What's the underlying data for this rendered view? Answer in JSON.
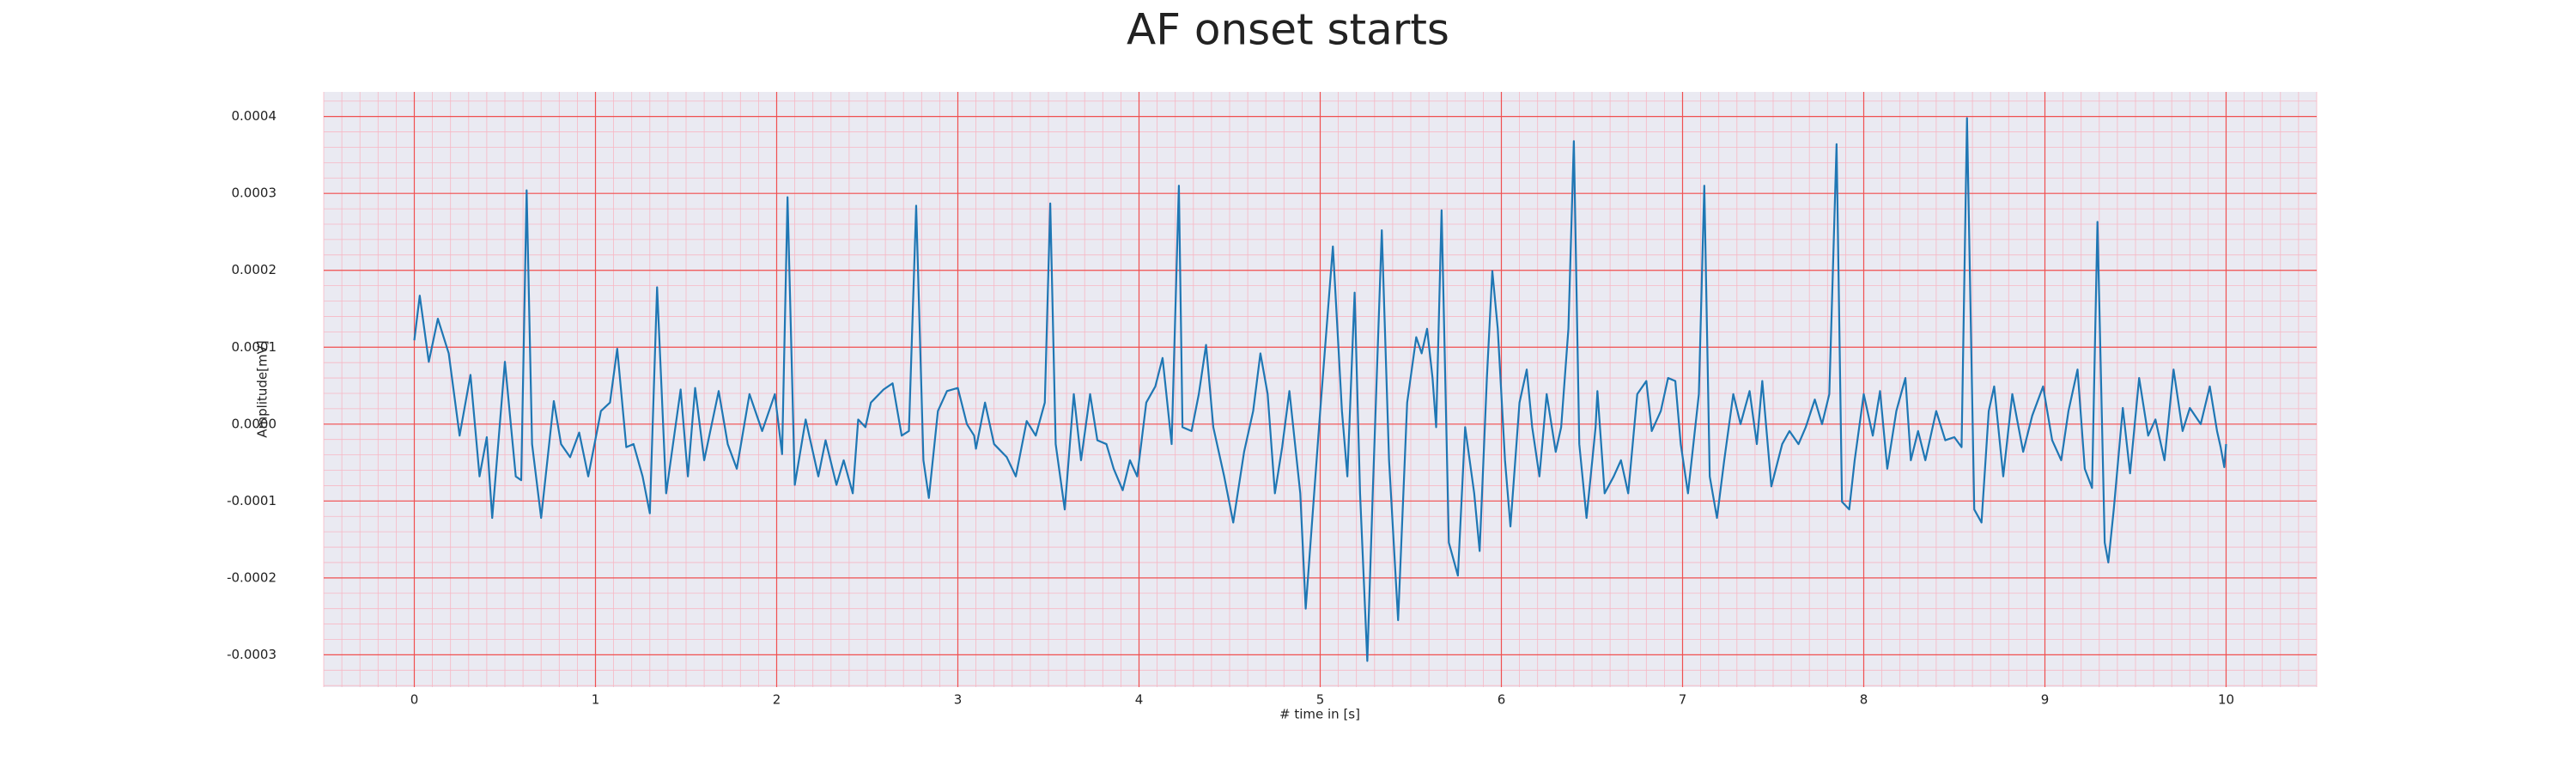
{
  "chart_data": {
    "type": "line",
    "title": "AF onset starts",
    "xlabel": "# time in [s]",
    "ylabel": "Amplitude[mV]",
    "color": "#1f77b4",
    "grid": true,
    "minor_grid": true,
    "xlim": [
      -0.5,
      10.5
    ],
    "xticks": [
      0,
      1,
      2,
      3,
      4,
      5,
      6,
      7,
      8,
      9,
      10
    ],
    "ylim": [
      -0.000342,
      0.000432
    ],
    "yticks": [
      {
        "value": -0.0003,
        "label": "-0.0003"
      },
      {
        "value": -0.0002,
        "label": "-0.0002"
      },
      {
        "value": -0.0001,
        "label": "-0.0001"
      },
      {
        "value": 0,
        "label": "0.0000"
      },
      {
        "value": 0.0001,
        "label": "0.0001"
      },
      {
        "value": 0.0002,
        "label": "0.0002"
      },
      {
        "value": 0.0003,
        "label": "0.0003"
      },
      {
        "value": 0.0004,
        "label": "0.0004"
      }
    ],
    "x": [
      0.0,
      0.03,
      0.08,
      0.13,
      0.19,
      0.25,
      0.31,
      0.36,
      0.4,
      0.43,
      0.5,
      0.56,
      0.59,
      0.62,
      0.65,
      0.7,
      0.77,
      0.81,
      0.86,
      0.91,
      0.96,
      1.03,
      1.08,
      1.12,
      1.17,
      1.21,
      1.26,
      1.3,
      1.34,
      1.39,
      1.47,
      1.51,
      1.55,
      1.6,
      1.68,
      1.73,
      1.78,
      1.85,
      1.92,
      1.99,
      2.03,
      2.06,
      2.1,
      2.16,
      2.23,
      2.27,
      2.33,
      2.37,
      2.42,
      2.45,
      2.49,
      2.52,
      2.59,
      2.64,
      2.69,
      2.73,
      2.77,
      2.81,
      2.84,
      2.89,
      2.94,
      3.0,
      3.05,
      3.09,
      3.1,
      3.15,
      3.2,
      3.27,
      3.32,
      3.38,
      3.43,
      3.48,
      3.51,
      3.54,
      3.59,
      3.64,
      3.68,
      3.73,
      3.77,
      3.82,
      3.86,
      3.91,
      3.95,
      3.99,
      4.04,
      4.09,
      4.13,
      4.18,
      4.22,
      4.24,
      4.29,
      4.33,
      4.37,
      4.41,
      4.47,
      4.52,
      4.58,
      4.63,
      4.67,
      4.71,
      4.75,
      4.79,
      4.83,
      4.89,
      4.92,
      5.0,
      5.07,
      5.12,
      5.15,
      5.19,
      5.22,
      5.26,
      5.29,
      5.34,
      5.38,
      5.43,
      5.48,
      5.53,
      5.56,
      5.59,
      5.62,
      5.64,
      5.67,
      5.71,
      5.76,
      5.8,
      5.85,
      5.88,
      5.92,
      5.95,
      5.98,
      6.02,
      6.05,
      6.1,
      6.14,
      6.17,
      6.21,
      6.25,
      6.3,
      6.33,
      6.37,
      6.4,
      6.43,
      6.47,
      6.52,
      6.53,
      6.57,
      6.62,
      6.66,
      6.7,
      6.75,
      6.8,
      6.83,
      6.88,
      6.92,
      6.96,
      6.99,
      7.03,
      7.09,
      7.12,
      7.15,
      7.19,
      7.23,
      7.28,
      7.32,
      7.37,
      7.41,
      7.44,
      7.49,
      7.55,
      7.59,
      7.64,
      7.68,
      7.73,
      7.77,
      7.81,
      7.85,
      7.88,
      7.92,
      7.95,
      8.0,
      8.05,
      8.09,
      8.13,
      8.18,
      8.23,
      8.26,
      8.3,
      8.34,
      8.4,
      8.45,
      8.5,
      8.54,
      8.57,
      8.61,
      8.65,
      8.69,
      8.72,
      8.77,
      8.82,
      8.88,
      8.93,
      8.99,
      9.04,
      9.09,
      9.13,
      9.18,
      9.22,
      9.26,
      9.29,
      9.33,
      9.35,
      9.38,
      9.43,
      9.47,
      9.52,
      9.57,
      9.61,
      9.66,
      9.71,
      9.76,
      9.8,
      9.86,
      9.91,
      9.95,
      9.97,
      9.99,
      10.0
    ],
    "values": [
      0.000109,
      0.000167,
      8.1e-05,
      0.000137,
      9.2e-05,
      -1.5e-05,
      6.4e-05,
      -6.8e-05,
      -1.7e-05,
      -0.000122,
      8.1e-05,
      -6.8e-05,
      -7.3e-05,
      0.000304,
      -2.6e-05,
      -0.000122,
      3e-05,
      -2.6e-05,
      -4.3e-05,
      -1.1e-05,
      -6.8e-05,
      1.7e-05,
      2.8e-05,
      9.8e-05,
      -3e-05,
      -2.6e-05,
      -6.8e-05,
      -0.000116,
      0.000178,
      -9e-05,
      4.5e-05,
      -6.8e-05,
      4.7e-05,
      -4.7e-05,
      4.3e-05,
      -2.6e-05,
      -5.8e-05,
      3.9e-05,
      -9e-06,
      3.9e-05,
      -3.9e-05,
      0.000295,
      -7.9e-05,
      6e-06,
      -6.8e-05,
      -2.1e-05,
      -7.9e-05,
      -4.7e-05,
      -9e-05,
      6e-06,
      -4e-06,
      2.8e-05,
      4.5e-05,
      5.3e-05,
      -1.5e-05,
      -9e-06,
      0.000284,
      -4.7e-05,
      -9.6e-05,
      1.7e-05,
      4.3e-05,
      4.7e-05,
      0,
      -1.5e-05,
      -3.2e-05,
      2.8e-05,
      -2.6e-05,
      -4.3e-05,
      -6.8e-05,
      4e-06,
      -1.5e-05,
      2.8e-05,
      0.000287,
      -2.6e-05,
      -0.000111,
      3.9e-05,
      -4.7e-05,
      3.9e-05,
      -2.1e-05,
      -2.6e-05,
      -5.8e-05,
      -8.6e-05,
      -4.7e-05,
      -6.8e-05,
      2.8e-05,
      4.9e-05,
      8.6e-05,
      -2.6e-05,
      0.00031,
      -4e-06,
      -9e-06,
      3.9e-05,
      0.000103,
      -4e-06,
      -6.8e-05,
      -0.000128,
      -3.6e-05,
      1.7e-05,
      9.2e-05,
      3.9e-05,
      -9e-05,
      -3e-05,
      4.3e-05,
      -9e-05,
      -0.00024,
      1.7e-05,
      0.000231,
      1.7e-05,
      -6.8e-05,
      0.000171,
      -9e-05,
      -0.000308,
      -9e-05,
      0.000252,
      -4.7e-05,
      -0.000255,
      2.8e-05,
      0.000113,
      9.2e-05,
      0.000124,
      6e-05,
      -4e-06,
      0.000278,
      -0.000154,
      -0.000197,
      -4e-06,
      -9e-05,
      -0.000165,
      6e-05,
      0.000199,
      0.000124,
      -4.7e-05,
      -0.000133,
      2.8e-05,
      7.1e-05,
      -4e-06,
      -6.8e-05,
      3.9e-05,
      -3.6e-05,
      -4e-06,
      0.000124,
      0.000368,
      -2.6e-05,
      -0.000122,
      -4e-06,
      4.3e-05,
      -9e-05,
      -6.8e-05,
      -4.7e-05,
      -9e-05,
      3.9e-05,
      5.6e-05,
      -9e-06,
      1.7e-05,
      6e-05,
      5.6e-05,
      -2.6e-05,
      -9e-05,
      3.9e-05,
      0.00031,
      -6.8e-05,
      -0.000122,
      -4.7e-05,
      3.9e-05,
      0,
      4.3e-05,
      -2.6e-05,
      5.6e-05,
      -8.1e-05,
      -2.6e-05,
      -9e-06,
      -2.6e-05,
      -4e-06,
      3.2e-05,
      0,
      3.9e-05,
      0.000364,
      -0.000101,
      -0.000111,
      -4.7e-05,
      3.9e-05,
      -1.5e-05,
      4.3e-05,
      -5.8e-05,
      1.7e-05,
      6e-05,
      -4.7e-05,
      -9e-06,
      -4.7e-05,
      1.7e-05,
      -2.1e-05,
      -1.7e-05,
      -3e-05,
      0.000398,
      -0.000111,
      -0.000128,
      1.7e-05,
      4.9e-05,
      -6.8e-05,
      3.9e-05,
      -3.6e-05,
      1.1e-05,
      4.9e-05,
      -2.1e-05,
      -4.7e-05,
      1.7e-05,
      7.1e-05,
      -5.8e-05,
      -8.3e-05,
      0.000263,
      -0.000154,
      -0.00018,
      -0.000111,
      2.1e-05,
      -6.4e-05,
      6e-05,
      -1.5e-05,
      6e-06,
      -4.7e-05,
      7.1e-05,
      -9e-06,
      2.1e-05,
      0,
      4.9e-05,
      -9e-06,
      -3e-05,
      -5.6e-05,
      -2.6e-05
    ]
  }
}
